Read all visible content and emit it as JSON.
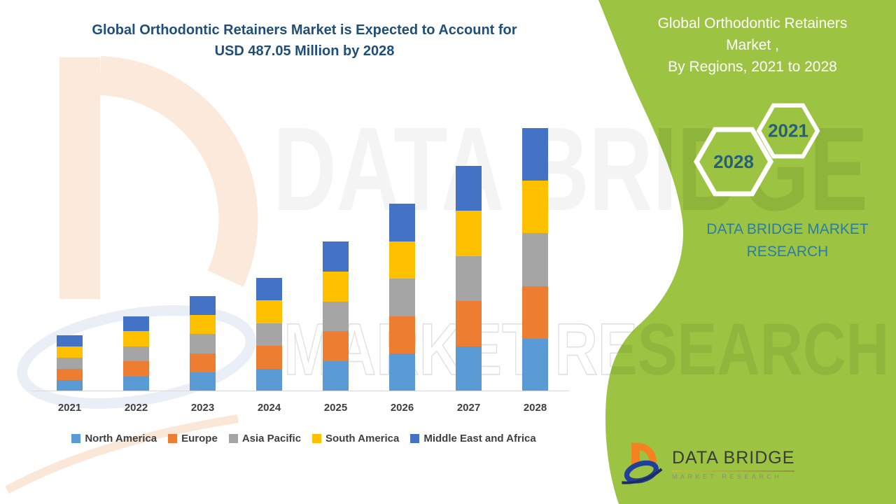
{
  "main": {
    "title_line1": "Global Orthodontic Retainers Market is Expected to Account for",
    "title_line2": "USD 487.05 Million by 2028",
    "title_color": "#1F4E79"
  },
  "side_panel": {
    "panel_color": "#9CC442",
    "heading_line1": "Global Orthodontic Retainers",
    "heading_line2": "Market ,",
    "heading_line3": "By Regions, 2021 to 2028",
    "hex_year_start": "2021",
    "hex_year_end": "2028",
    "hex_text_color": "#24607A",
    "brand_line1": "DATA BRIDGE MARKET",
    "brand_line2": "RESEARCH",
    "brand_color": "#2B7EA1"
  },
  "watermark": {
    "line1": "DATA BRIDGE",
    "line2": "MARKET RESEARCH"
  },
  "logo": {
    "name_line": "DATA BRIDGE",
    "sub_line": "MARKET RESEARCH"
  },
  "chart_data": {
    "type": "bar",
    "stacked": true,
    "title": "Global Orthodontic Retainers Market is Expected to Account for USD 487.05 Million by 2028",
    "unit": "USD Million",
    "categories": [
      "2021",
      "2022",
      "2023",
      "2024",
      "2025",
      "2026",
      "2027",
      "2028"
    ],
    "series": [
      {
        "name": "North America",
        "color": "#5B9BD5",
        "values": [
          20.7,
          27.7,
          35.2,
          42.0,
          55.4,
          69.4,
          83.4,
          97.4
        ]
      },
      {
        "name": "Europe",
        "color": "#ED7D31",
        "values": [
          20.7,
          27.7,
          35.2,
          42.0,
          55.4,
          69.4,
          83.4,
          97.4
        ]
      },
      {
        "name": "Asia Pacific",
        "color": "#A5A5A5",
        "values": [
          20.7,
          27.7,
          35.2,
          42.0,
          55.4,
          69.4,
          83.4,
          97.4
        ]
      },
      {
        "name": "South America",
        "color": "#FFC000",
        "values": [
          20.7,
          27.7,
          35.2,
          42.0,
          55.4,
          69.4,
          83.4,
          97.4
        ]
      },
      {
        "name": "Middle East and Africa",
        "color": "#4472C4",
        "values": [
          20.7,
          27.7,
          35.2,
          42.0,
          55.4,
          69.4,
          83.4,
          97.45
        ]
      }
    ],
    "totals": [
      103.5,
      138.5,
      176.0,
      210.0,
      277.0,
      347.0,
      417.0,
      487.05
    ],
    "xlabel": "",
    "ylabel": "",
    "ylim": [
      0,
      487.05
    ],
    "grid": false,
    "y_axis_labels_visible": false,
    "legend_position": "bottom"
  }
}
